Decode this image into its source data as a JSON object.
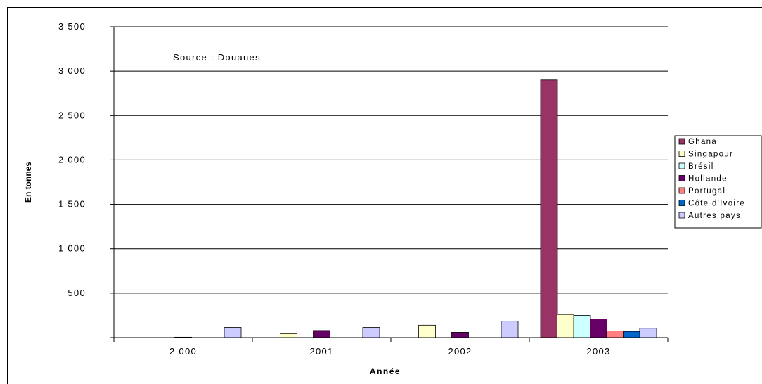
{
  "chart_data": {
    "type": "bar",
    "title": "",
    "xlabel": "Année",
    "ylabel": "En tonnes",
    "annotation": "Source : Douanes",
    "ylim": [
      0,
      3500
    ],
    "y_ticks": [
      "-",
      "500",
      "1 000",
      "1 500",
      "2 000",
      "2 500",
      "3 000",
      "3 500"
    ],
    "y_tick_values": [
      0,
      500,
      1000,
      1500,
      2000,
      2500,
      3000,
      3500
    ],
    "categories": [
      "2 000",
      "2001",
      "2002",
      "2003"
    ],
    "grid": true,
    "legend_position": "right",
    "series": [
      {
        "name": "Ghana",
        "color": "#993366",
        "values": [
          0,
          0,
          0,
          2900
        ]
      },
      {
        "name": "Singapour",
        "color": "#FFFFCC",
        "values": [
          0,
          45,
          140,
          260
        ]
      },
      {
        "name": "Brésil",
        "color": "#CCFFFF",
        "values": [
          0,
          0,
          0,
          250
        ]
      },
      {
        "name": "Hollande",
        "color": "#660066",
        "values": [
          5,
          80,
          60,
          210
        ]
      },
      {
        "name": "Portugal",
        "color": "#FF8080",
        "values": [
          0,
          0,
          0,
          75
        ]
      },
      {
        "name": "Côte d'Ivoire",
        "color": "#0066CC",
        "values": [
          0,
          0,
          0,
          70
        ]
      },
      {
        "name": "Autres pays",
        "color": "#CCCCFF",
        "values": [
          115,
          115,
          185,
          105
        ]
      }
    ]
  }
}
